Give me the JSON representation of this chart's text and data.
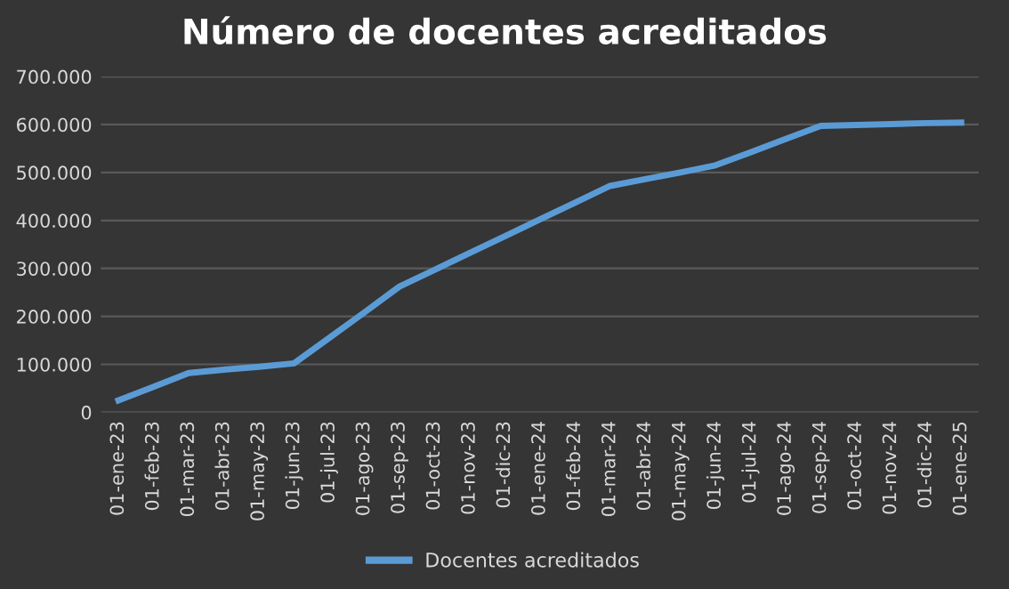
{
  "chart_data": {
    "type": "line",
    "title": "Número de docentes acreditados",
    "categories": [
      "01-ene-23",
      "01-feb-23",
      "01-mar-23",
      "01-abr-23",
      "01-may-23",
      "01-jun-23",
      "01-jul-23",
      "01-ago-23",
      "01-sep-23",
      "01-oct-23",
      "01-nov-23",
      "01-dic-23",
      "01-ene-24",
      "01-feb-24",
      "01-mar-24",
      "01-abr-24",
      "01-may-24",
      "01-jun-24",
      "01-jul-24",
      "01-ago-24",
      "01-sep-24",
      "01-oct-24",
      "01-nov-24",
      "01-dic-24",
      "01-ene-25"
    ],
    "series": [
      {
        "name": "Docentes acreditados",
        "color": "#5b9bd5",
        "values": [
          25000,
          53000,
          82000,
          89000,
          95000,
          102000,
          155000,
          208000,
          262000,
          297000,
          332000,
          367000,
          402000,
          437000,
          472000,
          486000,
          500000,
          515000,
          542000,
          570000,
          597000,
          599000,
          601000,
          603000,
          604000
        ]
      }
    ],
    "ylim": [
      0,
      700000
    ],
    "yticks": [
      0,
      {
        "value": 100000,
        "label": "100.000"
      },
      {
        "value": 200000,
        "label": "200.000"
      },
      {
        "value": 300000,
        "label": "300.000"
      },
      {
        "value": 400000,
        "label": "400.000"
      },
      {
        "value": 500000,
        "label": "500.000"
      },
      {
        "value": 600000,
        "label": "600.000"
      },
      {
        "value": 700000,
        "label": "700.000"
      }
    ],
    "grid": "y",
    "legend": "bottom",
    "marker": "none",
    "line_style": "solid"
  }
}
